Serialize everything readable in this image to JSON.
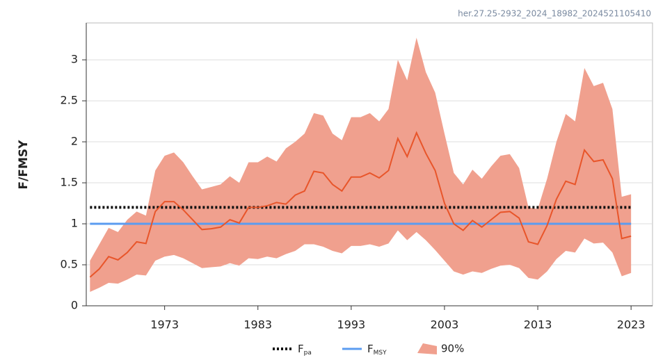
{
  "chart_data": {
    "type": "line",
    "annotation": "her.27.25-2932_2024_18982_2024521105410",
    "y_label": "F/FMSY",
    "x": [
      1965,
      1966,
      1967,
      1968,
      1969,
      1970,
      1971,
      1972,
      1973,
      1974,
      1975,
      1976,
      1977,
      1978,
      1979,
      1980,
      1981,
      1982,
      1983,
      1984,
      1985,
      1986,
      1987,
      1988,
      1989,
      1990,
      1991,
      1992,
      1993,
      1994,
      1995,
      1996,
      1997,
      1998,
      1999,
      2000,
      2001,
      2002,
      2003,
      2004,
      2005,
      2006,
      2007,
      2008,
      2009,
      2010,
      2011,
      2012,
      2013,
      2014,
      2015,
      2016,
      2017,
      2018,
      2019,
      2020,
      2021,
      2022,
      2023
    ],
    "xlim": [
      1964.6,
      2025.3
    ],
    "xticks": [
      1973,
      1983,
      1993,
      2003,
      2013,
      2023
    ],
    "ylim": [
      0,
      3.45
    ],
    "yticks": [
      0,
      0.5,
      1,
      1.5,
      2,
      2.5,
      3
    ],
    "grid": true,
    "series": [
      {
        "color": "#e8552a",
        "values": [
          0.35,
          0.45,
          0.6,
          0.56,
          0.65,
          0.78,
          0.76,
          1.15,
          1.27,
          1.27,
          1.17,
          1.05,
          0.93,
          0.94,
          0.96,
          1.05,
          1.01,
          1.2,
          1.2,
          1.22,
          1.26,
          1.24,
          1.35,
          1.4,
          1.64,
          1.62,
          1.48,
          1.4,
          1.57,
          1.57,
          1.62,
          1.56,
          1.65,
          2.04,
          1.82,
          2.11,
          1.86,
          1.65,
          1.25,
          1.0,
          0.92,
          1.04,
          0.96,
          1.05,
          1.14,
          1.15,
          1.07,
          0.78,
          0.75,
          0.98,
          1.3,
          1.52,
          1.48,
          1.9,
          1.76,
          1.78,
          1.55,
          0.82,
          0.85
        ]
      }
    ],
    "band": {
      "name": "90%",
      "color": "#f0a08e",
      "upper": [
        0.55,
        0.75,
        0.95,
        0.9,
        1.05,
        1.15,
        1.1,
        1.65,
        1.83,
        1.87,
        1.75,
        1.58,
        1.42,
        1.45,
        1.48,
        1.58,
        1.5,
        1.75,
        1.75,
        1.82,
        1.76,
        1.92,
        2.0,
        2.1,
        2.35,
        2.32,
        2.1,
        2.02,
        2.3,
        2.3,
        2.35,
        2.25,
        2.4,
        3.0,
        2.75,
        3.27,
        2.85,
        2.6,
        2.1,
        1.62,
        1.48,
        1.66,
        1.55,
        1.7,
        1.83,
        1.85,
        1.68,
        1.2,
        1.18,
        1.55,
        2.0,
        2.34,
        2.25,
        2.9,
        2.68,
        2.72,
        2.4,
        1.33,
        1.36
      ],
      "lower": [
        0.17,
        0.22,
        0.28,
        0.27,
        0.32,
        0.38,
        0.37,
        0.55,
        0.6,
        0.62,
        0.58,
        0.52,
        0.46,
        0.47,
        0.48,
        0.52,
        0.49,
        0.58,
        0.57,
        0.6,
        0.58,
        0.63,
        0.67,
        0.75,
        0.75,
        0.72,
        0.67,
        0.64,
        0.73,
        0.73,
        0.75,
        0.72,
        0.76,
        0.92,
        0.8,
        0.9,
        0.8,
        0.68,
        0.55,
        0.42,
        0.38,
        0.42,
        0.4,
        0.45,
        0.49,
        0.5,
        0.46,
        0.34,
        0.32,
        0.42,
        0.57,
        0.67,
        0.65,
        0.82,
        0.76,
        0.77,
        0.65,
        0.36,
        0.4
      ]
    },
    "reference_lines": [
      {
        "name": "F",
        "subscript": "pa",
        "value": 1.2,
        "color": "#111111",
        "style": "dotted"
      },
      {
        "name": "F",
        "subscript": "MSY",
        "value": 1,
        "color": "#5b9cf0",
        "style": "solid"
      }
    ]
  }
}
